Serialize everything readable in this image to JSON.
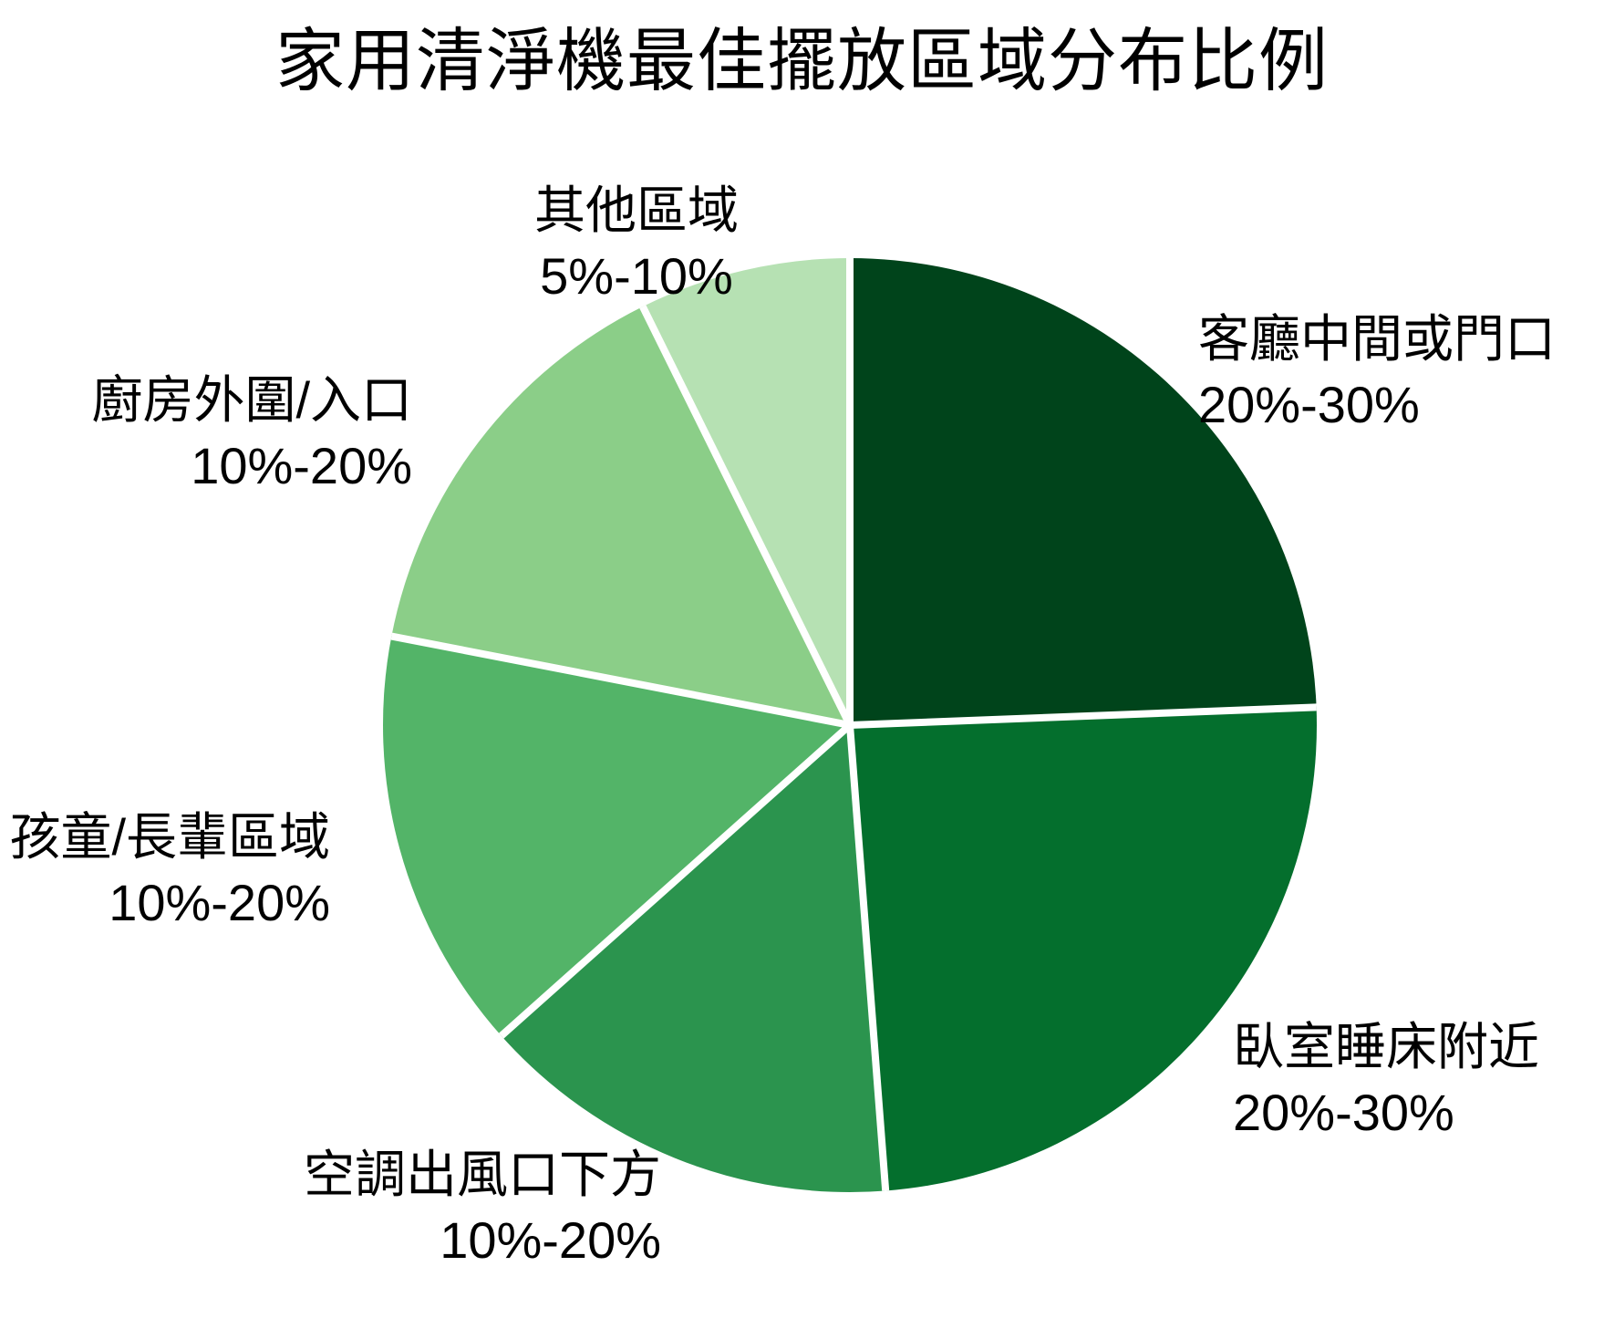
{
  "chart_data": {
    "type": "pie",
    "title": "家用清淨機最佳擺放區域分布比例",
    "direction": "clockwise",
    "start_angle_deg": 0,
    "background_color": "#FFFFFF",
    "separator_color": "#FFFFFF",
    "text_color": "#000000",
    "legend": "none",
    "segments": [
      {
        "label": "客廳中間或門口",
        "range": "20%-30%",
        "value_mid_pct": 25,
        "color": "#00441B"
      },
      {
        "label": "臥室睡床附近",
        "range": "20%-30%",
        "value_mid_pct": 25,
        "color": "#046F2D"
      },
      {
        "label": "空調出風口下方",
        "range": "10%-20%",
        "value_mid_pct": 15,
        "color": "#2B944E"
      },
      {
        "label": "孩童/長輩區域",
        "range": "10%-20%",
        "value_mid_pct": 15,
        "color": "#53B468"
      },
      {
        "label": "廚房外圍/入口",
        "range": "10%-20%",
        "value_mid_pct": 15,
        "color": "#8BCE88"
      },
      {
        "label": "其他區域",
        "range": "5%-10%",
        "value_mid_pct": 7.5,
        "color": "#B6E1B3"
      }
    ]
  }
}
